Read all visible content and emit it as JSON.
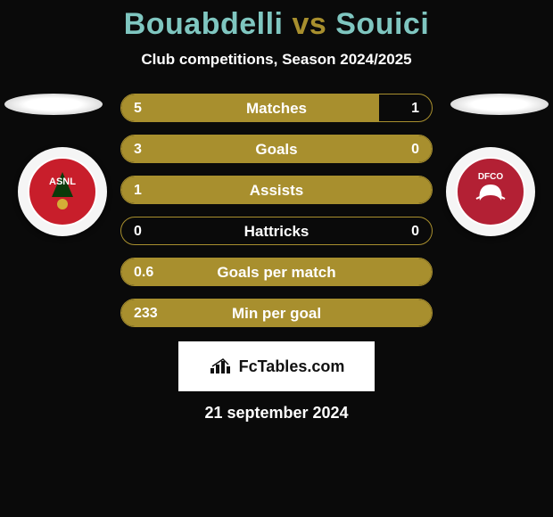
{
  "title": {
    "player1": "Bouabdelli",
    "vs": "vs",
    "player2": "Souici",
    "color_p1": "#7fc6c0",
    "color_vs": "#a88f2e",
    "color_p2": "#7fc6c0"
  },
  "subtitle": "Club competitions, Season 2024/2025",
  "teams": {
    "left": {
      "abbr": "ASNL",
      "crest_bg": "#c81e2b",
      "crest_border": "#ffffff"
    },
    "right": {
      "abbr": "DFCO",
      "crest_bg": "#b32034",
      "crest_border": "#ffffff"
    }
  },
  "stats": {
    "border_color": "#a88f2e",
    "fill_color": "#a88f2e",
    "rows": [
      {
        "label": "Matches",
        "left": "5",
        "right": "1",
        "fill_pct": 83
      },
      {
        "label": "Goals",
        "left": "3",
        "right": "0",
        "fill_pct": 100
      },
      {
        "label": "Assists",
        "left": "1",
        "right": "",
        "fill_pct": 100
      },
      {
        "label": "Hattricks",
        "left": "0",
        "right": "0",
        "fill_pct": 0
      },
      {
        "label": "Goals per match",
        "left": "0.6",
        "right": "",
        "fill_pct": 100
      },
      {
        "label": "Min per goal",
        "left": "233",
        "right": "",
        "fill_pct": 100
      }
    ]
  },
  "branding": "FcTables.com",
  "date": "21 september 2024",
  "colors": {
    "bg": "#0a0a0a",
    "text": "#ffffff"
  }
}
